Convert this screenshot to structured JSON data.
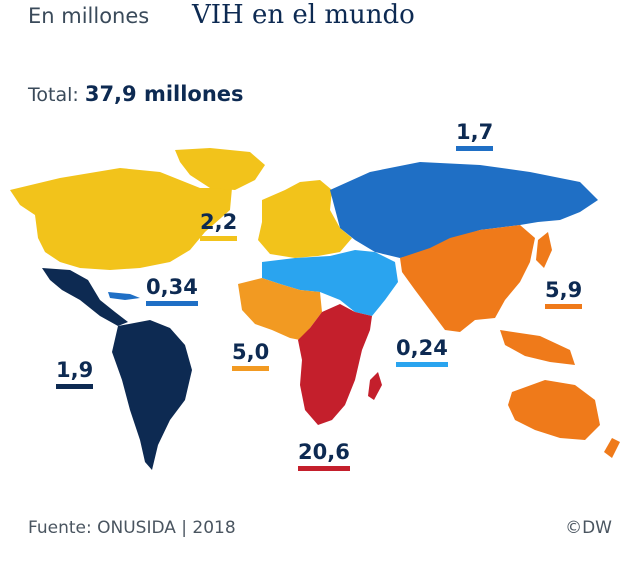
{
  "header": {
    "subtitle": "En millones",
    "title": "VIH en el mundo"
  },
  "total": {
    "label": "Total:",
    "value": "37,9 millones"
  },
  "regions": [
    {
      "id": "east-europe-central-asia",
      "value": "1,7",
      "color": "#1f6fc5"
    },
    {
      "id": "west-central-europe-north-america",
      "value": "2,2",
      "color": "#f2c31b"
    },
    {
      "id": "caribbean",
      "value": "0,34",
      "color": "#1f6fc5"
    },
    {
      "id": "asia-pacific",
      "value": "5,9",
      "color": "#ef7a1a"
    },
    {
      "id": "latin-america",
      "value": "1,9",
      "color": "#0d2a52"
    },
    {
      "id": "west-central-africa",
      "value": "5,0",
      "color": "#f29a22"
    },
    {
      "id": "middle-east-north-africa",
      "value": "0,24",
      "color": "#2aa4ef"
    },
    {
      "id": "east-southern-africa",
      "value": "20,6",
      "color": "#c41f2c"
    }
  ],
  "footer": {
    "source": "Fuente: ONUSIDA | 2018",
    "credit": "©DW"
  }
}
